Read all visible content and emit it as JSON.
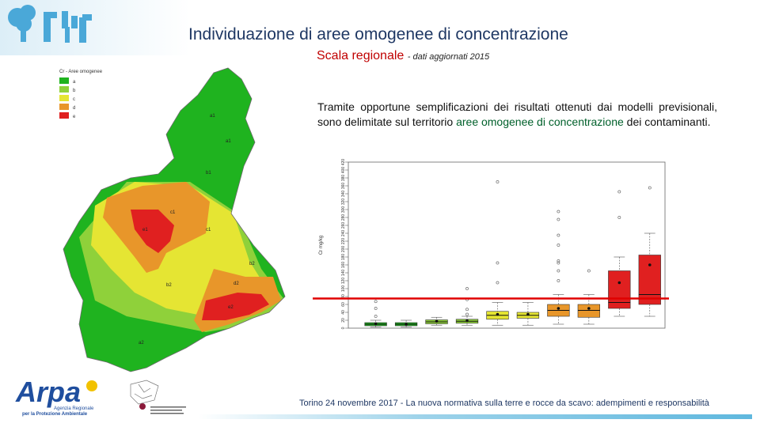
{
  "header": {
    "title": "Individuazione di aree omogenee di concentrazione",
    "subtitle": "Scala regionale",
    "subtitle_note": "- dati aggiornati 2015"
  },
  "description": {
    "part1": "Tramite opportune semplificazioni dei risultati ottenuti dai modelli previsionali, sono delimitate sul territorio ",
    "highlight1": "aree omogenee di concentrazione",
    "part2": " dei contaminanti."
  },
  "map": {
    "legend_title": "Cr - Aree omogenee",
    "legend_items": [
      {
        "label": "a",
        "color": "#1fb31f"
      },
      {
        "label": "b",
        "color": "#8fd13a"
      },
      {
        "label": "c",
        "color": "#e5e533"
      },
      {
        "label": "d",
        "color": "#e8962a"
      },
      {
        "label": "e",
        "color": "#e02020"
      }
    ],
    "zone_labels": [
      "a1",
      "a1",
      "b1",
      "c1",
      "e1",
      "c1",
      "b2",
      "b2",
      "d2",
      "e2",
      "a2"
    ]
  },
  "chart_data": {
    "type": "boxplot",
    "ylabel": "Cr mg/kg",
    "yticks": [
      "0",
      "20",
      "40",
      "60",
      "80",
      "100",
      "120",
      "140",
      "160",
      "180",
      "200",
      "220",
      "240",
      "260",
      "280",
      "300",
      "320",
      "340",
      "360",
      "380",
      "400",
      "420"
    ],
    "threshold": 150,
    "threshold_color": "#e00000",
    "boxes": [
      {
        "q1": 12,
        "median": 20,
        "q3": 28,
        "lo": 5,
        "hi": 40,
        "mean": 22,
        "color": "#1fb31f",
        "outliers": [
          60,
          100,
          135
        ]
      },
      {
        "q1": 12,
        "median": 20,
        "q3": 28,
        "lo": 5,
        "hi": 40,
        "mean": 20,
        "color": "#1fb31f",
        "outliers": []
      },
      {
        "q1": 22,
        "median": 32,
        "q3": 42,
        "lo": 15,
        "hi": 55,
        "mean": 35,
        "color": "#8fd13a",
        "outliers": []
      },
      {
        "q1": 25,
        "median": 35,
        "q3": 45,
        "lo": 15,
        "hi": 60,
        "mean": 38,
        "color": "#8fd13a",
        "outliers": [
          70,
          95,
          145,
          200
        ]
      },
      {
        "q1": 45,
        "median": 65,
        "q3": 85,
        "lo": 15,
        "hi": 130,
        "mean": 70,
        "color": "#e5e533",
        "outliers": [
          230,
          330,
          740
        ]
      },
      {
        "q1": 50,
        "median": 65,
        "q3": 80,
        "lo": 15,
        "hi": 130,
        "mean": 70,
        "color": "#e5e533",
        "outliers": []
      },
      {
        "q1": 60,
        "median": 90,
        "q3": 120,
        "lo": 20,
        "hi": 170,
        "mean": 100,
        "color": "#e8962a",
        "outliers": [
          240,
          290,
          330,
          340,
          420,
          470,
          550,
          590
        ]
      },
      {
        "q1": 55,
        "median": 90,
        "q3": 120,
        "lo": 20,
        "hi": 170,
        "mean": 100,
        "color": "#e8962a",
        "outliers": [
          290
        ]
      },
      {
        "q1": 100,
        "median": 130,
        "q3": 290,
        "lo": 60,
        "hi": 360,
        "mean": 230,
        "color": "#e02020",
        "outliers": [
          560,
          690
        ]
      },
      {
        "q1": 120,
        "median": 170,
        "q3": 370,
        "lo": 60,
        "hi": 480,
        "mean": 320,
        "color": "#e02020",
        "outliers": [
          710
        ]
      }
    ]
  },
  "logos": {
    "arpa_name": "Arpa",
    "arpa_sub1": "Agenzia Regionale",
    "arpa_sub2": "per la Protezione Ambientale",
    "arpa_color": "#1f4e9e"
  },
  "footer": {
    "text": "Torino 24 novembre 2017 - La nuova normativa sulla terre e rocce da scavo: adempimenti e responsabilità"
  }
}
